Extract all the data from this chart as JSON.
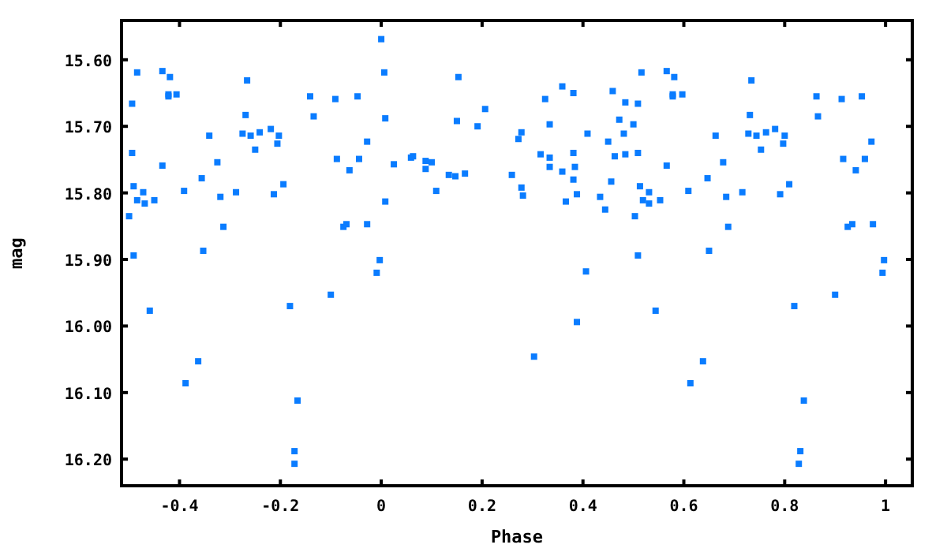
{
  "chart_data": {
    "type": "scatter",
    "xlabel": "Phase",
    "ylabel": "mag",
    "marker": "square",
    "grid": false,
    "xlim": [
      -0.515,
      1.053
    ],
    "ylim": [
      16.24,
      15.541
    ],
    "xticks": [
      -0.4,
      -0.2,
      0,
      0.2,
      0.4,
      0.6,
      0.8,
      1
    ],
    "yticks": [
      {
        "value": 15.6,
        "label": "15.60"
      },
      {
        "value": 15.7,
        "label": "15.70"
      },
      {
        "value": 15.8,
        "label": "15.80"
      },
      {
        "value": 15.9,
        "label": "15.90"
      },
      {
        "value": 16.0,
        "label": "16.00"
      },
      {
        "value": 16.1,
        "label": "16.10"
      },
      {
        "value": 16.2,
        "label": "16.20"
      }
    ],
    "series": [
      {
        "color": "#0a7cff",
        "x": [
          0.0,
          -0.484,
          -0.434,
          -0.419,
          -0.266,
          0.006,
          -0.422,
          -0.422,
          -0.406,
          -0.141,
          -0.091,
          -0.047,
          -0.494,
          -0.269,
          -0.134,
          0.008,
          -0.341,
          -0.275,
          -0.259,
          -0.241,
          -0.219,
          -0.203,
          -0.206,
          -0.25,
          -0.028,
          -0.494,
          -0.434,
          -0.325,
          -0.088,
          -0.044,
          -0.063,
          -0.356,
          -0.491,
          -0.472,
          -0.391,
          -0.288,
          -0.194,
          -0.213,
          -0.319,
          -0.484,
          -0.469,
          -0.45,
          0.008,
          -0.5,
          -0.313,
          -0.075,
          -0.069,
          -0.028,
          -0.353,
          -0.491,
          -0.003,
          -0.009,
          -0.459,
          -0.1,
          -0.181,
          -0.363,
          -0.388,
          -0.166,
          -0.172,
          -0.172,
          0.153,
          0.206,
          0.15,
          0.191,
          0.359,
          0.381,
          0.325,
          0.459,
          0.484,
          0.509,
          0.516,
          0.472,
          0.5,
          0.481,
          0.45,
          0.409,
          0.334,
          0.278,
          0.272,
          0.025,
          0.059,
          0.063,
          0.088,
          0.1,
          0.088,
          0.134,
          0.147,
          0.166,
          0.109,
          0.259,
          0.278,
          0.281,
          0.316,
          0.334,
          0.334,
          0.359,
          0.381,
          0.384,
          0.381,
          0.388,
          0.366,
          0.463,
          0.484,
          0.509,
          0.456,
          0.434,
          0.444,
          0.503,
          0.513,
          0.531,
          0.519,
          0.531,
          0.406,
          0.509,
          0.388,
          0.544,
          0.303,
          0.553,
          0.566,
          0.581,
          0.578,
          0.578,
          0.597,
          0.566,
          0.609,
          0.663,
          0.734,
          0.731,
          0.728,
          0.744,
          0.763,
          0.781,
          0.8,
          0.797,
          0.753,
          0.678,
          0.647,
          0.684,
          0.716,
          0.809,
          0.791,
          0.688,
          0.65,
          0.863,
          0.866,
          0.913,
          0.953,
          0.972,
          0.916,
          0.959,
          0.941,
          0.925,
          0.934,
          0.975,
          0.997,
          0.994,
          0.9,
          0.819,
          0.638,
          0.613,
          0.838,
          0.831,
          0.828
        ],
        "values": [
          15.569,
          15.619,
          15.617,
          15.626,
          15.631,
          15.619,
          15.652,
          15.655,
          15.652,
          15.655,
          15.659,
          15.655,
          15.666,
          15.683,
          15.685,
          15.688,
          15.714,
          15.711,
          15.714,
          15.709,
          15.704,
          15.714,
          15.726,
          15.735,
          15.723,
          15.74,
          15.759,
          15.754,
          15.749,
          15.749,
          15.766,
          15.778,
          15.79,
          15.799,
          15.797,
          15.799,
          15.787,
          15.802,
          15.806,
          15.811,
          15.816,
          15.811,
          15.813,
          15.835,
          15.851,
          15.851,
          15.847,
          15.847,
          15.887,
          15.894,
          15.901,
          15.92,
          15.977,
          15.953,
          15.97,
          16.053,
          16.086,
          16.112,
          16.188,
          16.207,
          15.626,
          15.674,
          15.692,
          15.7,
          15.64,
          15.65,
          15.659,
          15.647,
          15.664,
          15.666,
          15.619,
          15.69,
          15.697,
          15.711,
          15.723,
          15.711,
          15.697,
          15.709,
          15.719,
          15.757,
          15.747,
          15.745,
          15.752,
          15.754,
          15.764,
          15.773,
          15.775,
          15.771,
          15.797,
          15.773,
          15.792,
          15.804,
          15.742,
          15.747,
          15.761,
          15.768,
          15.74,
          15.761,
          15.78,
          15.802,
          15.813,
          15.745,
          15.742,
          15.74,
          15.783,
          15.806,
          15.825,
          15.835,
          15.79,
          15.799,
          15.811,
          15.816,
          15.918,
          15.894,
          15.994,
          15.977,
          16.046,
          15.811,
          15.617,
          15.626,
          15.652,
          15.655,
          15.652,
          15.759,
          15.797,
          15.714,
          15.631,
          15.683,
          15.711,
          15.714,
          15.709,
          15.704,
          15.714,
          15.726,
          15.735,
          15.754,
          15.778,
          15.806,
          15.799,
          15.787,
          15.802,
          15.851,
          15.887,
          15.655,
          15.685,
          15.659,
          15.655,
          15.723,
          15.749,
          15.749,
          15.766,
          15.851,
          15.847,
          15.847,
          15.901,
          15.92,
          15.953,
          15.97,
          16.053,
          16.086,
          16.112,
          16.188,
          16.207
        ]
      }
    ]
  }
}
